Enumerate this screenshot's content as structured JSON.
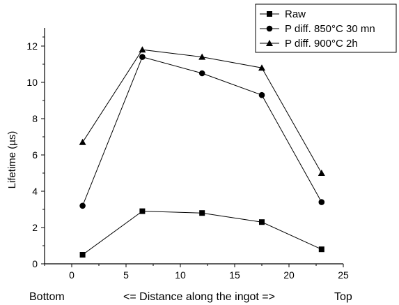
{
  "chart_data": {
    "type": "line",
    "title": "",
    "xlabel": "<= Distance along the ingot =>",
    "ylabel": "Lifetime (µs)",
    "x_end_labels": {
      "left": "Bottom",
      "right": "Top"
    },
    "xlim": [
      -2.5,
      25
    ],
    "ylim": [
      0,
      13
    ],
    "x_ticks": [
      0,
      5,
      10,
      15,
      20,
      25
    ],
    "y_ticks": [
      0,
      2,
      4,
      6,
      8,
      10,
      12
    ],
    "grid": false,
    "legend_position": "top-right",
    "series": [
      {
        "name": "Raw",
        "marker": "square",
        "x": [
          1,
          6.5,
          12,
          17.5,
          23
        ],
        "y": [
          0.5,
          2.9,
          2.8,
          2.3,
          0.8
        ]
      },
      {
        "name": "P diff. 850°C 30 mn",
        "marker": "circle",
        "x": [
          1,
          6.5,
          12,
          17.5,
          23
        ],
        "y": [
          3.2,
          11.4,
          10.5,
          9.3,
          3.4
        ]
      },
      {
        "name": "P diff. 900°C 2h",
        "marker": "triangle",
        "x": [
          1,
          6.5,
          12,
          17.5,
          23
        ],
        "y": [
          6.7,
          11.8,
          11.4,
          10.8,
          5.0
        ]
      }
    ]
  }
}
